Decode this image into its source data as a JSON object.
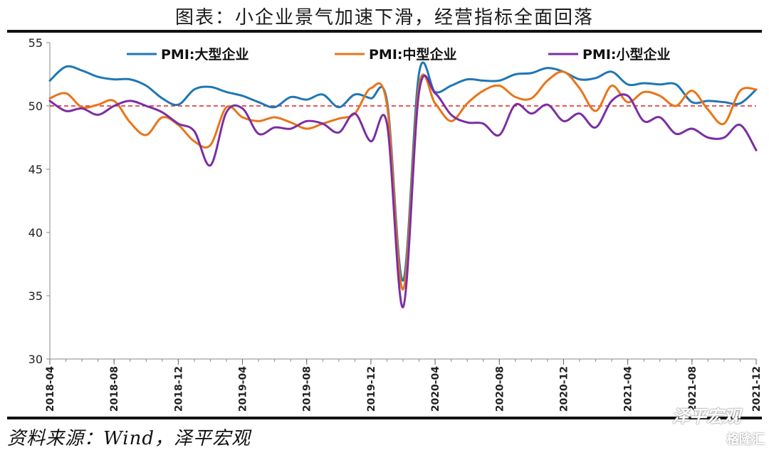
{
  "title": "图表：小企业景气加速下滑，经营指标全面回落",
  "source": "资料来源：Wind，泽平宏观",
  "watermark": "泽平宏观",
  "watermark2": "格隆汇",
  "chart_data": {
    "type": "line",
    "ylim": [
      30,
      55
    ],
    "yticks": [
      30,
      35,
      40,
      45,
      50,
      55
    ],
    "xticks": [
      "2018-04",
      "2018-08",
      "2018-12",
      "2019-04",
      "2019-08",
      "2019-12",
      "2020-04",
      "2020-08",
      "2020-12",
      "2021-04",
      "2021-08",
      "2021-12"
    ],
    "x": [
      "2018-04",
      "2018-05",
      "2018-06",
      "2018-07",
      "2018-08",
      "2018-09",
      "2018-10",
      "2018-11",
      "2018-12",
      "2019-01",
      "2019-02",
      "2019-03",
      "2019-04",
      "2019-05",
      "2019-06",
      "2019-07",
      "2019-08",
      "2019-09",
      "2019-10",
      "2019-11",
      "2019-12",
      "2020-01",
      "2020-02",
      "2020-03",
      "2020-04",
      "2020-05",
      "2020-06",
      "2020-07",
      "2020-08",
      "2020-09",
      "2020-10",
      "2020-11",
      "2020-12",
      "2021-01",
      "2021-02",
      "2021-03",
      "2021-04",
      "2021-05",
      "2021-06",
      "2021-07",
      "2021-08",
      "2021-09",
      "2021-10",
      "2021-11",
      "2021-12"
    ],
    "reference_line": 50,
    "legend_position": "top",
    "series": [
      {
        "name": "PMI:大型企业",
        "color": "#1f77b4",
        "values": [
          52.0,
          53.1,
          52.8,
          52.3,
          52.1,
          52.1,
          51.6,
          50.6,
          50.1,
          51.3,
          51.5,
          51.1,
          50.8,
          50.3,
          49.9,
          50.7,
          50.5,
          50.9,
          49.9,
          50.9,
          50.6,
          50.4,
          36.2,
          52.6,
          51.1,
          51.6,
          52.1,
          52.0,
          52.0,
          52.5,
          52.6,
          53.0,
          52.7,
          52.1,
          52.2,
          52.7,
          51.7,
          51.8,
          51.7,
          51.7,
          50.3,
          50.4,
          50.3,
          50.2,
          51.3
        ]
      },
      {
        "name": "PMI:中型企业",
        "color": "#e8751a",
        "values": [
          50.6,
          51.0,
          49.9,
          50.1,
          50.4,
          48.7,
          47.7,
          49.1,
          48.5,
          47.2,
          46.9,
          49.9,
          49.1,
          48.8,
          49.1,
          48.7,
          48.2,
          48.6,
          49.0,
          49.4,
          51.4,
          50.1,
          35.5,
          51.6,
          50.2,
          48.8,
          50.2,
          51.2,
          51.6,
          50.7,
          50.6,
          52.0,
          52.7,
          51.4,
          49.6,
          51.6,
          50.3,
          51.1,
          50.8,
          50.0,
          51.2,
          49.7,
          48.6,
          51.2,
          51.3
        ]
      },
      {
        "name": "PMI:小型企业",
        "color": "#7b2ea3",
        "values": [
          50.4,
          49.6,
          49.8,
          49.3,
          50.0,
          50.4,
          50.0,
          49.5,
          48.6,
          48.0,
          45.3,
          49.5,
          49.8,
          47.8,
          48.3,
          48.2,
          48.8,
          48.6,
          47.9,
          49.4,
          47.2,
          48.6,
          34.1,
          51.1,
          51.0,
          49.3,
          48.7,
          48.6,
          47.7,
          50.1,
          49.4,
          50.1,
          48.8,
          49.4,
          48.3,
          50.4,
          50.8,
          48.8,
          49.1,
          47.8,
          48.2,
          47.5,
          47.5,
          48.5,
          46.5
        ]
      }
    ]
  }
}
